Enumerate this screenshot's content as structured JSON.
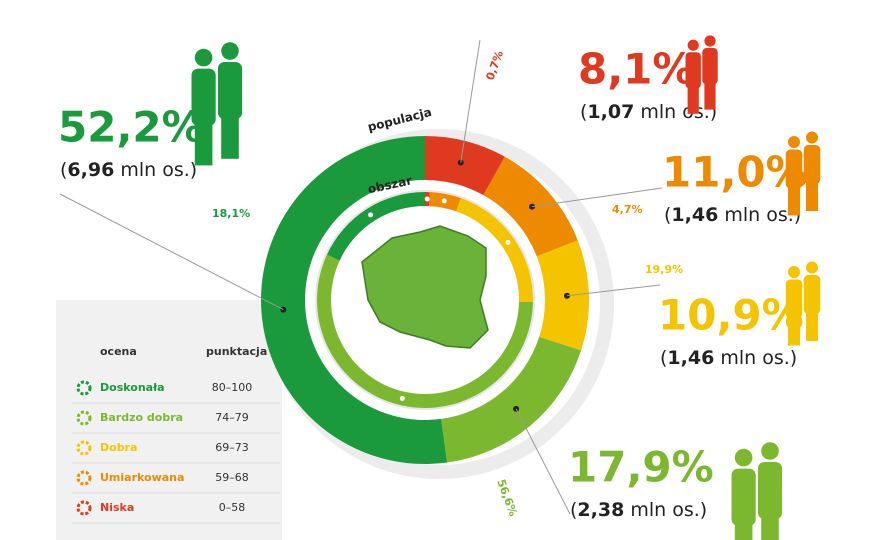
{
  "chart_data": {
    "type": "donut",
    "categories": [
      "Doskonała",
      "Bardzo dobra",
      "Dobra",
      "Umiarkowana",
      "Niska"
    ],
    "colors": [
      "#1a9a3c",
      "#7cb82f",
      "#f5c400",
      "#ee8a00",
      "#df3a1f"
    ],
    "series": [
      {
        "name": "populacja",
        "values": [
          52.2,
          17.9,
          10.9,
          11.0,
          8.1
        ],
        "value_labels": [
          "52,2%",
          "17,9%",
          "10,9%",
          "11,0%",
          "8,1%"
        ],
        "counts": [
          6.96,
          2.38,
          1.46,
          1.46,
          1.07
        ],
        "count_labels": [
          "6,96",
          "2,38",
          "1,46",
          "1,46",
          "1,07"
        ]
      },
      {
        "name": "obszar",
        "values": [
          18.1,
          56.6,
          19.9,
          4.7,
          0.7
        ],
        "value_labels": [
          "18,1%",
          "56,6%",
          "19,9%",
          "4,7%",
          "0,7%"
        ]
      }
    ],
    "count_unit": "mln os.",
    "legend": {
      "headers": [
        "ocena",
        "punktacja"
      ],
      "ranges": [
        "80–100",
        "74–79",
        "69–73",
        "59–68",
        "0–58"
      ]
    }
  }
}
